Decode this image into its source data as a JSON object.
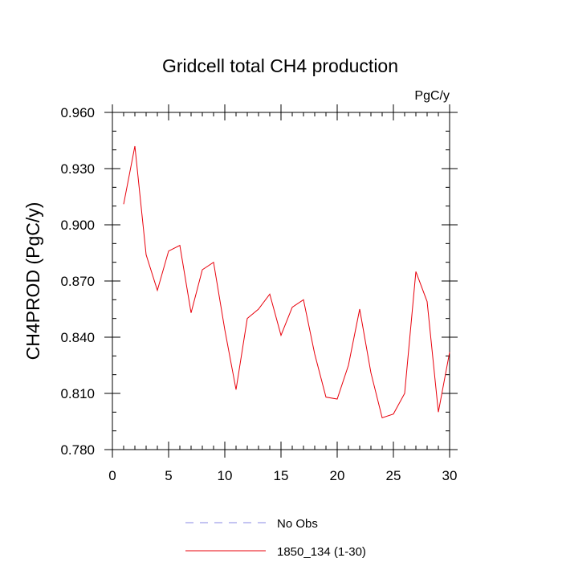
{
  "chart_data": {
    "type": "line",
    "title": "Gridcell total CH4 production",
    "units": "PgC/y",
    "ylabel": "CH4PROD  (PgC/y)",
    "xlabel": "",
    "xlim": [
      0,
      30
    ],
    "ylim": [
      0.78,
      0.96
    ],
    "xticks": [
      0,
      5,
      10,
      15,
      20,
      25,
      30
    ],
    "xtick_labels": [
      "0",
      "5",
      "10",
      "15",
      "20",
      "25",
      "30"
    ],
    "yticks": [
      0.78,
      0.81,
      0.84,
      0.87,
      0.9,
      0.93,
      0.96
    ],
    "ytick_labels": [
      "0.780",
      "0.810",
      "0.840",
      "0.870",
      "0.900",
      "0.930",
      "0.960"
    ],
    "grid": false,
    "legend_position": "bottom-center",
    "series": [
      {
        "name": "No Obs",
        "color": "#8a8ae6",
        "dash": "dashed",
        "x": [],
        "y": []
      },
      {
        "name": "1850_134 (1-30)",
        "color": "#e8000b",
        "dash": "solid",
        "x": [
          1,
          2,
          3,
          4,
          5,
          6,
          7,
          8,
          9,
          10,
          11,
          12,
          13,
          14,
          15,
          16,
          17,
          18,
          19,
          20,
          21,
          22,
          23,
          24,
          25,
          26,
          27,
          28,
          29,
          30
        ],
        "y": [
          0.911,
          0.942,
          0.884,
          0.865,
          0.886,
          0.889,
          0.853,
          0.876,
          0.88,
          0.844,
          0.812,
          0.85,
          0.855,
          0.863,
          0.841,
          0.856,
          0.86,
          0.831,
          0.808,
          0.807,
          0.825,
          0.855,
          0.821,
          0.797,
          0.799,
          0.81,
          0.875,
          0.859,
          0.8,
          0.832
        ]
      }
    ]
  }
}
